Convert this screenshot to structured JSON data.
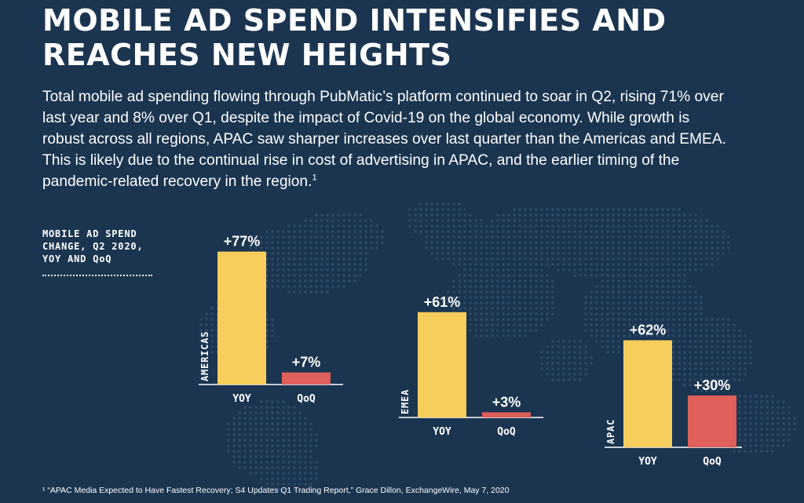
{
  "title": "MOBILE AD SPEND INTENSIFIES AND REACHES NEW HEIGHTS",
  "body": "Total mobile ad spending flowing through PubMatic’s platform continued to soar in Q2, rising 71% over last year and 8% over Q1, despite the impact of Covid-19 on the global economy. While growth is robust across all regions, APAC saw sharper increases over last quarter than the Americas and EMEA. This is likely due to the continual rise in cost of advertising in APAC, and the earlier timing of the pandemic-related recovery in the region.",
  "body_footnote_marker": "1",
  "chart_label": [
    "MOBILE AD SPEND",
    "CHANGE, Q2 2020,",
    "YOY AND QoQ"
  ],
  "footnote": "¹ “APAC Media Expected to Have Fastest Recovery; S4 Updates Q1 Trading Report,” Grace Dillon, ExchangeWire, May 7, 2020",
  "colors": {
    "background": "#1b3550",
    "yoy": "#f7cd5c",
    "qoq": "#df5f5a",
    "text": "#ffffff"
  },
  "chart_data": [
    {
      "type": "bar",
      "region": "AMERICAS",
      "categories": [
        "YOY",
        "QoQ"
      ],
      "values": [
        77,
        7
      ],
      "data_labels": [
        "+77%",
        "+7%"
      ]
    },
    {
      "type": "bar",
      "region": "EMEA",
      "categories": [
        "YOY",
        "QoQ"
      ],
      "values": [
        61,
        3
      ],
      "data_labels": [
        "+61%",
        "+3%"
      ]
    },
    {
      "type": "bar",
      "region": "APAC",
      "categories": [
        "YOY",
        "QoQ"
      ],
      "values": [
        62,
        30
      ],
      "data_labels": [
        "+62%",
        "+30%"
      ]
    }
  ]
}
